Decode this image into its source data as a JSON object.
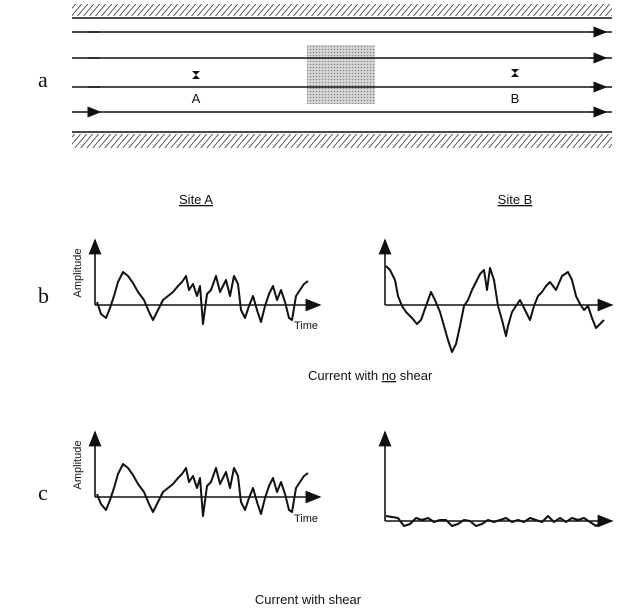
{
  "panel_labels": [
    "a",
    "b",
    "c"
  ],
  "channel": {
    "site_a_marker": "A",
    "site_b_marker": "B"
  },
  "columns": [
    "Site A",
    "Site B"
  ],
  "panel_b": {
    "y_axis_label": "Amplitude",
    "x_axis_label": "Time",
    "caption": {
      "before": "Current with ",
      "emphasis": "no",
      "after": " shear"
    }
  },
  "panel_c": {
    "y_axis_label": "Amplitude",
    "x_axis_label": "Time",
    "caption": "Current with shear"
  }
}
